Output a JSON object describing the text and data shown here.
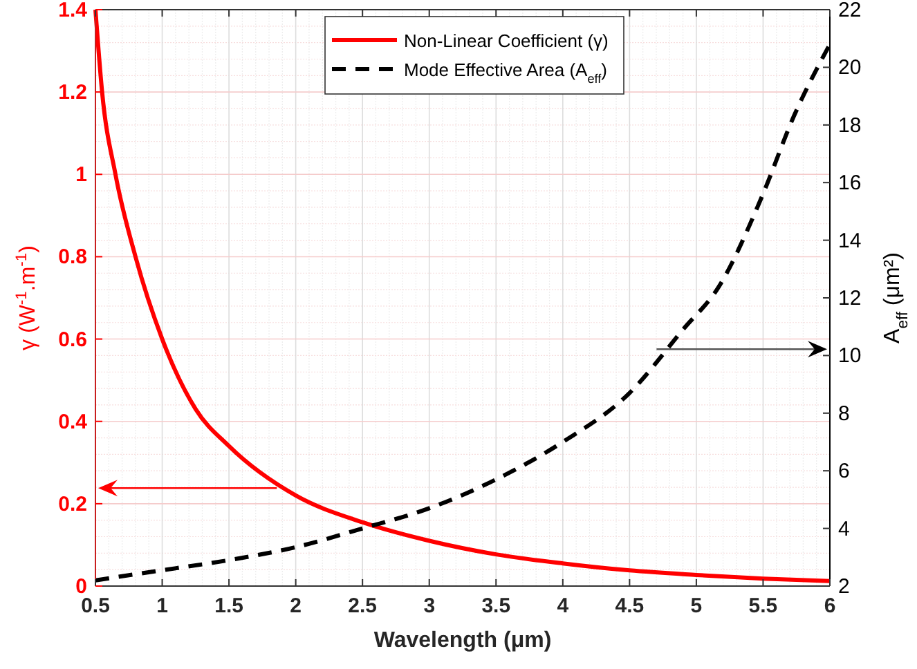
{
  "chart_data": {
    "type": "line",
    "xlabel": "Wavelength (μm)",
    "ylabel": "γ (W$^{-1}$.m$^{-1}$)",
    "y2label": "A$_{eff}$ (μm²)",
    "xlim": [
      0.5,
      6
    ],
    "xticks": [
      0.5,
      1,
      1.5,
      2,
      2.5,
      3,
      3.5,
      4,
      4.5,
      5,
      5.5,
      6
    ],
    "ylim": [
      0,
      1.4
    ],
    "yticks": [
      0,
      0.2,
      0.4,
      0.6,
      0.8,
      1,
      1.2,
      1.4
    ],
    "y2lim": [
      2,
      22
    ],
    "y2ticks": [
      2,
      4,
      6,
      8,
      10,
      12,
      14,
      16,
      18,
      20,
      22
    ],
    "grid": true,
    "legend": "top",
    "series": [
      {
        "name": "Non-Linear Coefficient (γ)",
        "color": "#ff0000",
        "line_style": "solid",
        "x": [
          0.5,
          0.55,
          0.65,
          0.8,
          1.0,
          1.25,
          1.5,
          2,
          2.5,
          3,
          3.5,
          4,
          4.5,
          5,
          5.5,
          6
        ],
        "values": [
          1.4,
          1.2,
          1.0,
          0.8,
          0.6,
          0.43,
          0.34,
          0.22,
          0.155,
          0.11,
          0.077,
          0.055,
          0.038,
          0.027,
          0.018,
          0.012
        ]
      },
      {
        "name": "Mode Effective Area (A$_{eff}$)",
        "color": "#000000",
        "line_style": "dashed",
        "axis": "y2",
        "x": [
          0.5,
          1,
          1.5,
          2,
          2.5,
          3,
          3.5,
          4,
          4.5,
          4.9,
          5.17,
          5.49,
          5.73,
          6
        ],
        "values": [
          2.2,
          2.55,
          2.9,
          3.35,
          4.0,
          4.7,
          5.7,
          7.0,
          8.7,
          10.9,
          12.4,
          15.5,
          18.3,
          20.8
        ]
      }
    ]
  }
}
